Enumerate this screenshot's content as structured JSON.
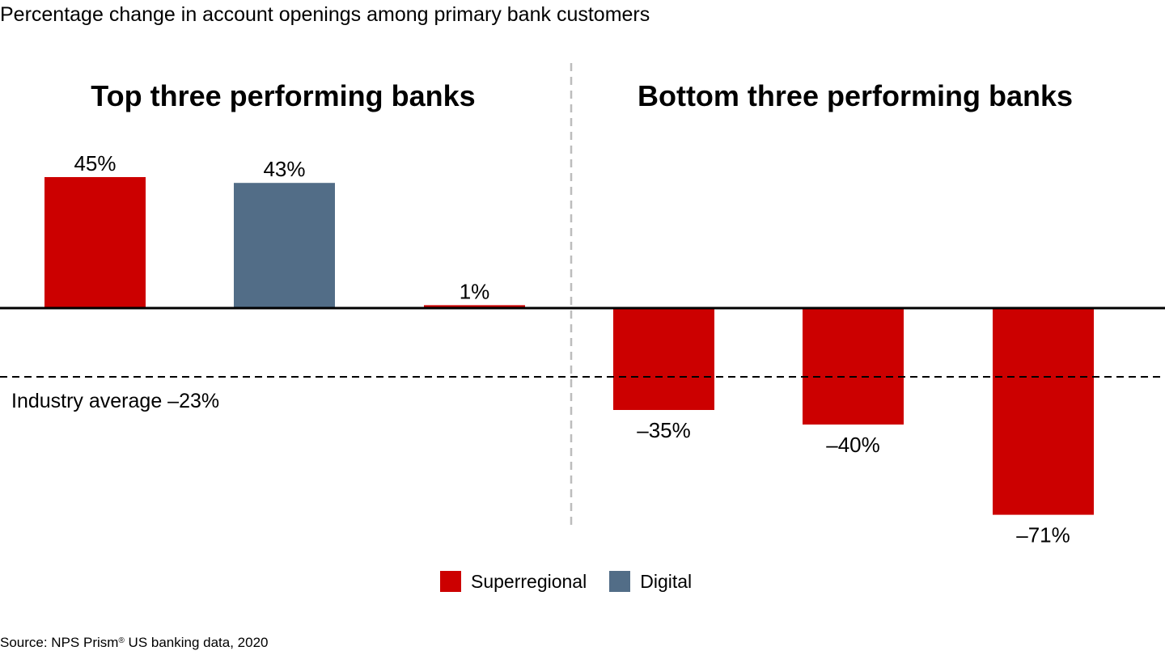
{
  "title": "Percentage change in account openings among primary bank customers",
  "groups": {
    "top": "Top three performing banks",
    "bottom": "Bottom three performing banks"
  },
  "industry_average_label": "Industry average –23%",
  "legend": [
    {
      "name": "Superregional",
      "color": "#cc0000"
    },
    {
      "name": "Digital",
      "color": "#526d87"
    }
  ],
  "source": {
    "prefix": "Source: NPS Prism",
    "mark": "®",
    "suffix": " US banking data, 2020"
  },
  "chart_data": {
    "type": "bar",
    "title": "Percentage change in account openings among primary bank customers",
    "xlabel": "",
    "ylabel": "",
    "categories": [
      "",
      "",
      "",
      "",
      "",
      ""
    ],
    "values": [
      45,
      43,
      1,
      -35,
      -40,
      -71
    ],
    "value_labels": [
      "45%",
      "43%",
      "1%",
      "–35%",
      "–40%",
      "–71%"
    ],
    "bar_types": [
      "Superregional",
      "Digital",
      "Superregional",
      "Superregional",
      "Superregional",
      "Superregional"
    ],
    "groups": [
      {
        "name": "Top three performing banks",
        "bars": [
          0,
          1,
          2
        ]
      },
      {
        "name": "Bottom three performing banks",
        "bars": [
          3,
          4,
          5
        ]
      }
    ],
    "reference_line": {
      "name": "Industry average",
      "value": -23
    },
    "grid": false,
    "legend_position": "bottom-center",
    "colors": {
      "Superregional": "#cc0000",
      "Digital": "#526d87"
    }
  }
}
